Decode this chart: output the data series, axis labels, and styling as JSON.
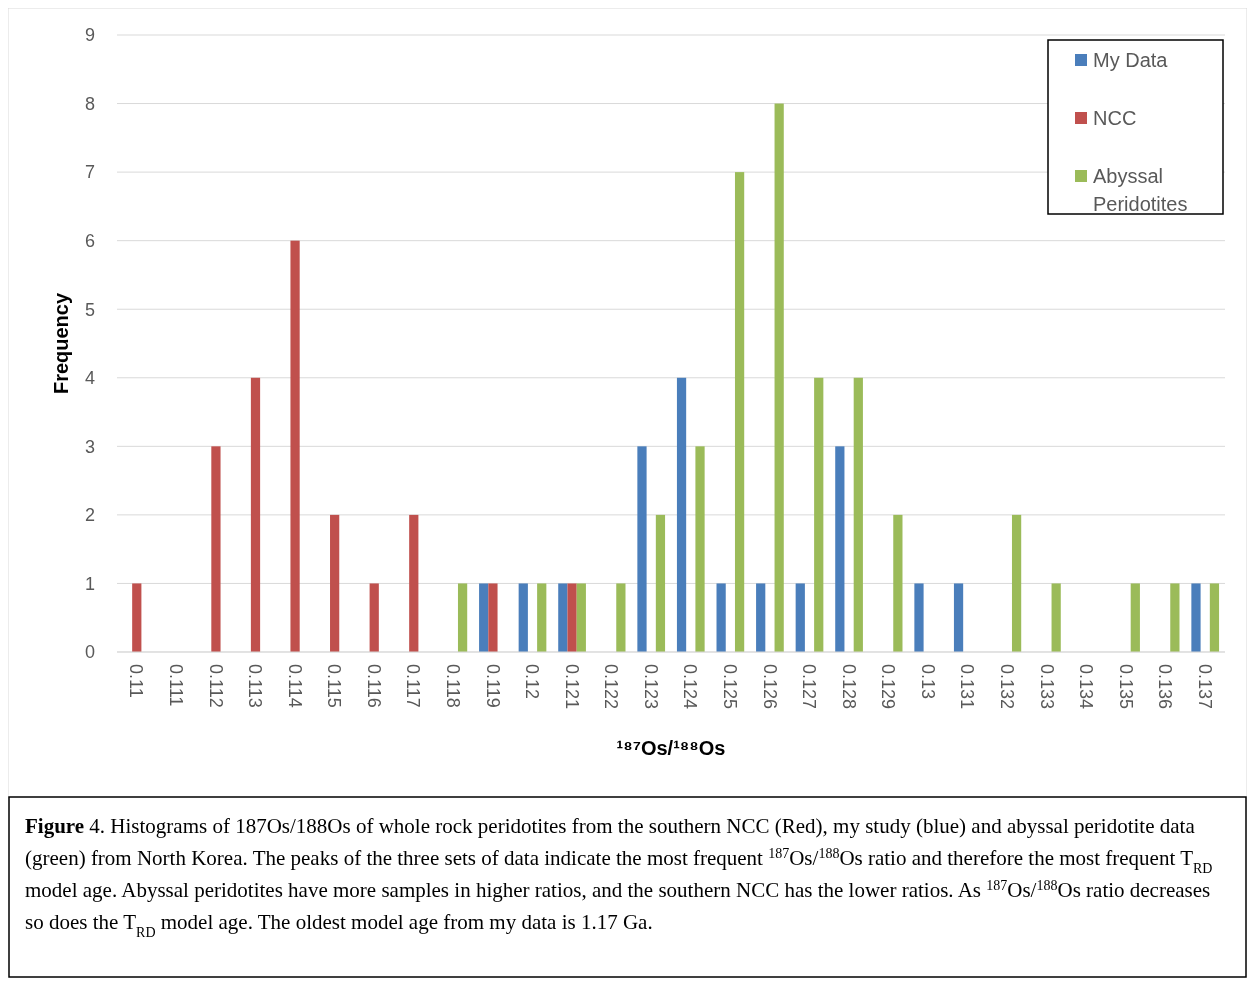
{
  "chart_data": {
    "type": "bar",
    "xlabel": "¹⁸⁷Os/¹⁸⁸Os",
    "ylabel": "Frequency",
    "categories": [
      "0.11",
      "0.111",
      "0.112",
      "0.113",
      "0.114",
      "0.115",
      "0.116",
      "0.117",
      "0.118",
      "0.119",
      "0.12",
      "0.121",
      "0.122",
      "0.123",
      "0.124",
      "0.125",
      "0.126",
      "0.127",
      "0.128",
      "0.129",
      "0.13",
      "0.131",
      "0.132",
      "0.133",
      "0.134",
      "0.135",
      "0.136",
      "0.137"
    ],
    "series": [
      {
        "name": "My Data",
        "color": "#4a7ebb",
        "values": [
          0,
          0,
          0,
          0,
          0,
          0,
          0,
          0,
          0,
          1,
          1,
          1,
          0,
          3,
          4,
          1,
          1,
          1,
          3,
          0,
          1,
          1,
          0,
          0,
          0,
          0,
          0,
          1
        ]
      },
      {
        "name": "NCC",
        "color": "#c0504d",
        "values": [
          1,
          0,
          3,
          4,
          6,
          2,
          1,
          2,
          0,
          1,
          0,
          1,
          0,
          0,
          0,
          0,
          0,
          0,
          0,
          0,
          0,
          0,
          0,
          0,
          0,
          0,
          0,
          0
        ]
      },
      {
        "name": "Abyssal Peridotites",
        "color": "#9bbb59",
        "values": [
          0,
          0,
          0,
          0,
          0,
          0,
          0,
          0,
          1,
          0,
          1,
          1,
          1,
          2,
          3,
          7,
          8,
          4,
          4,
          2,
          0,
          0,
          2,
          1,
          0,
          1,
          1,
          1
        ]
      }
    ],
    "ylim": [
      0,
      9
    ],
    "yticks": [
      0,
      1,
      2,
      3,
      4,
      5,
      6,
      7,
      8,
      9
    ],
    "grid": "y",
    "legend": "top right",
    "annotations": [
      "Figure 4. Histograms of 187Os/188Os of whole rock peridotites from the southern NCC (Red), my study (blue) and abyssal peridotite data (green) from North Korea. The peaks of the three sets of data indicate the most frequent $^{187}$Os/$^{188}$Os ratio and therefore the most frequent T$_{RD}$ model age. Abyssal peridotites have more samples in higher ratios, and the southern NCC has the lower ratios. As $^{187}$Os/$^{188}$Os ratio decreases so does the T$_{RD}$ model age. The oldest model age from my data is 1.17 Ga."
    ]
  }
}
